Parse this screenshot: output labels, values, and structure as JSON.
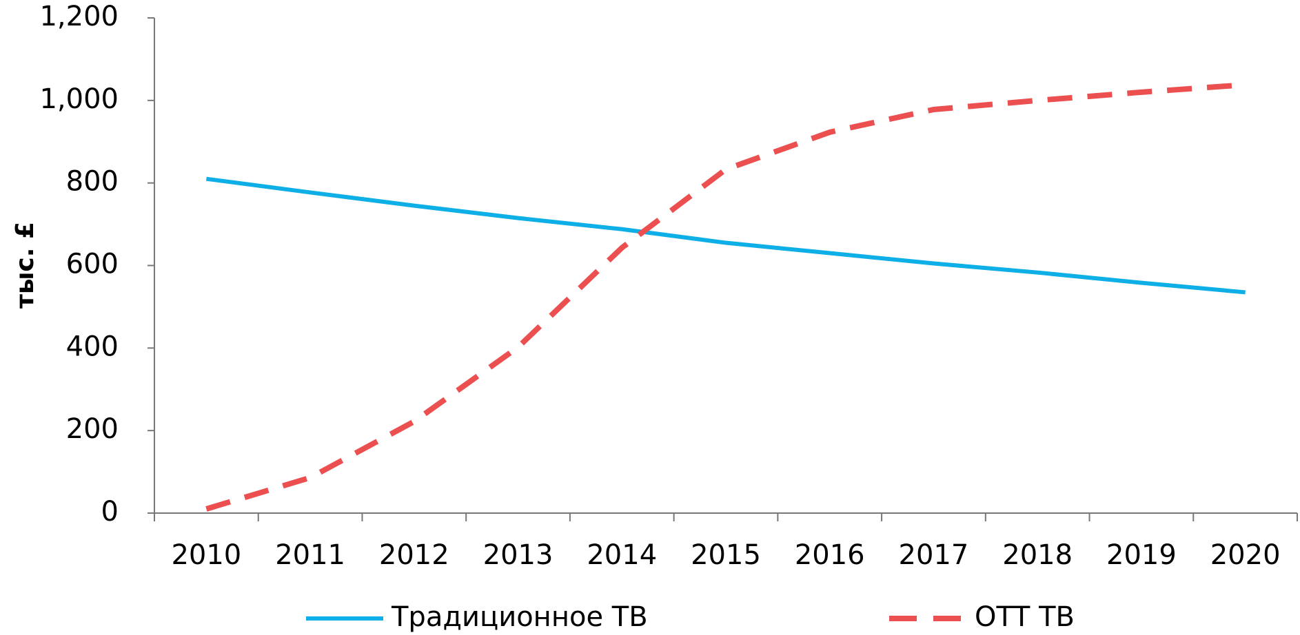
{
  "chart_data": {
    "type": "line",
    "y_label": "тыс. £",
    "categories": [
      "2010",
      "2011",
      "2012",
      "2013",
      "2014",
      "2015",
      "2016",
      "2017",
      "2018",
      "2019",
      "2020"
    ],
    "series": [
      {
        "name": "Традиционное ТВ",
        "color": "#0eaee6",
        "line_style": "solid",
        "values": [
          810,
          777,
          745,
          715,
          688,
          655,
          630,
          605,
          583,
          558,
          535
        ]
      },
      {
        "name": "ОТТ ТВ",
        "color": "#ec4f4f",
        "line_style": "dashed",
        "values": [
          10,
          86,
          222,
          402,
          643,
          833,
          923,
          978,
          1000,
          1020,
          1038
        ]
      }
    ],
    "ylim": [
      0,
      1200
    ],
    "yticks": [
      0,
      200,
      400,
      600,
      800,
      {
        "value": 1000,
        "label": "1,000"
      },
      {
        "value": 1200,
        "label": "1,200"
      }
    ],
    "grid": false,
    "legend": "bottom"
  }
}
